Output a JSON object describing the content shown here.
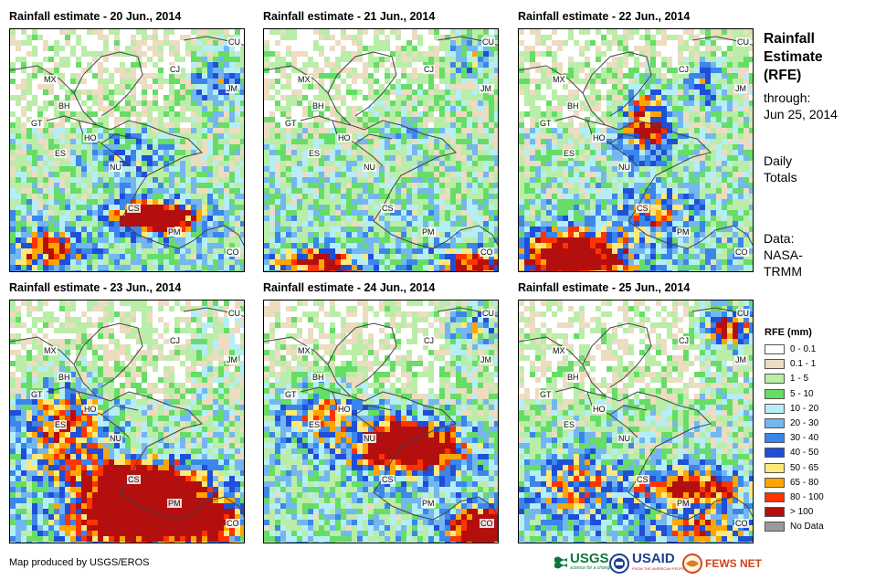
{
  "panels": [
    {
      "title": "Rainfall estimate - 20 Jun., 2014"
    },
    {
      "title": "Rainfall estimate - 21 Jun., 2014"
    },
    {
      "title": "Rainfall estimate - 22 Jun., 2014"
    },
    {
      "title": "Rainfall estimate - 23 Jun., 2014"
    },
    {
      "title": "Rainfall estimate - 24 Jun., 2014"
    },
    {
      "title": "Rainfall estimate - 25 Jun., 2014"
    }
  ],
  "country_labels": [
    "CU",
    "MX",
    "CJ",
    "JM",
    "BH",
    "GT",
    "HO",
    "ES",
    "NU",
    "CS",
    "PM",
    "CO"
  ],
  "side_title_lines": [
    "Rainfall",
    "Estimate",
    "(RFE)"
  ],
  "through_label": "through:",
  "through_date": "Jun 25, 2014",
  "totals_lines": [
    "Daily",
    "Totals"
  ],
  "data_lines": [
    "Data:",
    "NASA-",
    "TRMM"
  ],
  "legend": {
    "title": "RFE (mm)",
    "items": [
      {
        "label": "0 - 0.1",
        "color": "#ffffff"
      },
      {
        "label": "0.1 - 1",
        "color": "#ecdcc0"
      },
      {
        "label": "1 - 5",
        "color": "#b9eda8"
      },
      {
        "label": "5 - 10",
        "color": "#66dd66"
      },
      {
        "label": "10 - 20",
        "color": "#b5eef5"
      },
      {
        "label": "20 - 30",
        "color": "#74b6f0"
      },
      {
        "label": "30 - 40",
        "color": "#3a86ea"
      },
      {
        "label": "40 - 50",
        "color": "#1f4fd8"
      },
      {
        "label": "50 - 65",
        "color": "#ffe878"
      },
      {
        "label": "65 - 80",
        "color": "#ffa500"
      },
      {
        "label": "80 - 100",
        "color": "#ff3300"
      },
      {
        "label": "> 100",
        "color": "#b40f0f"
      },
      {
        "label": "No Data",
        "color": "#9a9a9a"
      }
    ]
  },
  "credit": "Map produced by USGS/EROS",
  "logos": {
    "usgs": "USGS",
    "usgs_tagline": "science for a changing world",
    "usaid": "USAID",
    "usaid_tagline": "FROM THE AMERICAN PEOPLE",
    "fews": "FEWS NET"
  }
}
